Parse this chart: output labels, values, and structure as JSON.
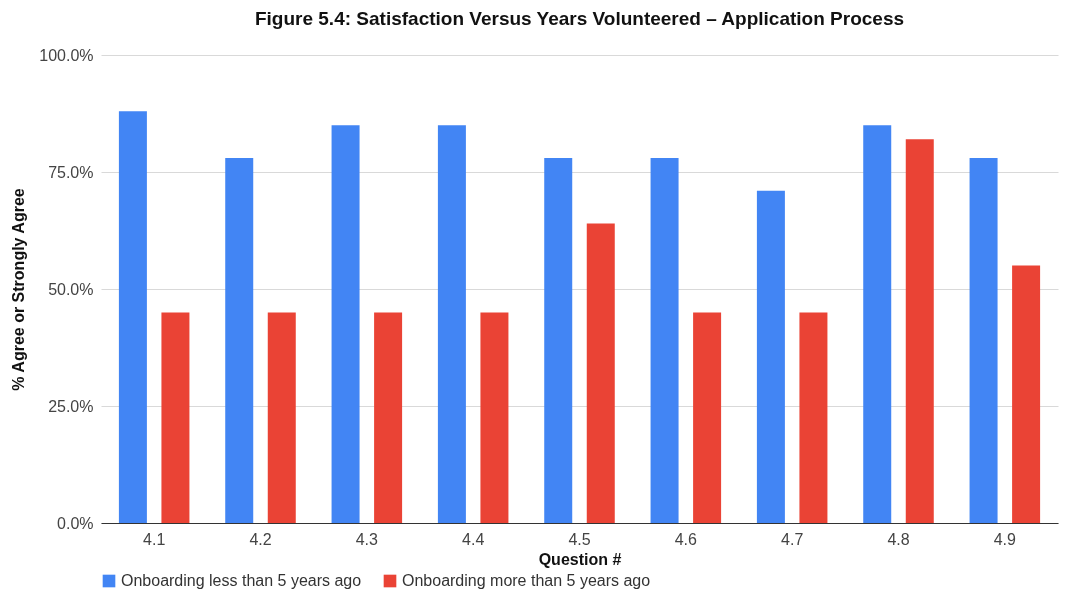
{
  "chart_data": {
    "type": "bar",
    "title": "Figure 5.4: Satisfaction Versus Years Volunteered –  Application Process",
    "xlabel": "Question #",
    "ylabel": "% Agree or Strongly Agree",
    "categories": [
      "4.1",
      "4.2",
      "4.3",
      "4.4",
      "4.5",
      "4.6",
      "4.7",
      "4.8",
      "4.9"
    ],
    "series": [
      {
        "name": "Onboarding less than 5 years ago",
        "color": "#4285f4",
        "values": [
          88,
          78,
          85,
          85,
          78,
          78,
          71,
          85,
          78
        ]
      },
      {
        "name": "Onboarding more than 5 years ago",
        "color": "#ea4335",
        "values": [
          45,
          45,
          45,
          45,
          64,
          45,
          45,
          82,
          55
        ]
      }
    ],
    "ylim": [
      0,
      100
    ],
    "yticks": [
      {
        "value": 0,
        "label": "0.0%"
      },
      {
        "value": 25,
        "label": "25.0%"
      },
      {
        "value": 50,
        "label": "50.0%"
      },
      {
        "value": 75,
        "label": "75.0%"
      },
      {
        "value": 100,
        "label": "100.0%"
      }
    ],
    "grid": "y",
    "legend": "bottom"
  }
}
